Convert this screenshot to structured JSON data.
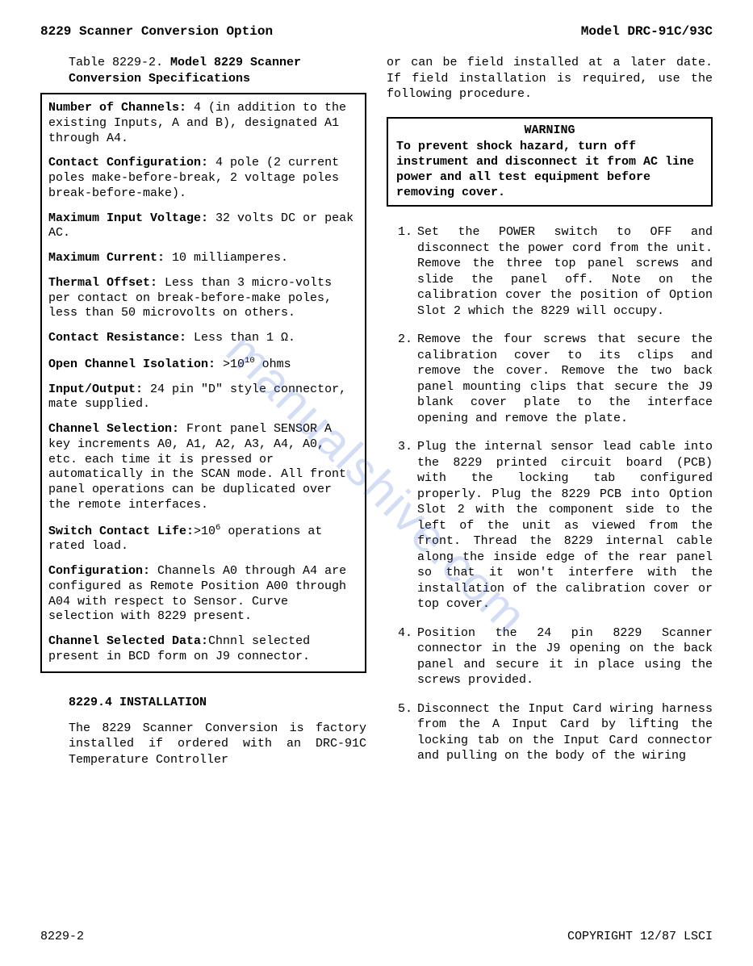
{
  "header": {
    "left": "8229 Scanner Conversion Option",
    "right": "Model DRC-91C/93C"
  },
  "table_caption": {
    "prefix": "Table 8229-2.  ",
    "bold": "Model 8229 Scanner Conversion Specifications"
  },
  "specs": [
    {
      "label": "Number of Channels:",
      "text": "  4 (in addition to the  existing Inputs, A and B), designated A1 through A4."
    },
    {
      "label": "Contact Configuration:",
      "text": "  4 pole (2 current poles make-before-break, 2 voltage poles break-before-make)."
    },
    {
      "label": "Maximum Input Voltage:",
      "text": "  32 volts DC or peak AC."
    },
    {
      "label": "Maximum Current:",
      "text": "  10 milliamperes."
    },
    {
      "label": "Thermal Offset:",
      "text": "  Less than 3 micro-volts per contact on break-before-make poles, less than 50 microvolts on others."
    },
    {
      "label": "Contact Resistance:",
      "text": "  Less than 1 Ω."
    },
    {
      "label": "Open Channel Isolation:",
      "text_html": "  >10<sup>10</sup> ohms"
    },
    {
      "label": "Input/Output:",
      "text": "  24 pin \"D\" style connector, mate supplied."
    },
    {
      "label": "Channel Selection:",
      "text": "  Front panel SENSOR A key increments A0, A1, A2, A3, A4, A0, etc. each time it is pressed or automatically in the SCAN mode.  All front panel operations can be duplicated over the remote interfaces."
    },
    {
      "label": "Switch Contact Life:",
      "text_html": ">10<sup>6</sup> operations at rated load."
    },
    {
      "label": "Configuration:",
      "text": "  Channels A0 through A4 are configured as Remote Position A00 through A04 with respect to Sensor.  Curve selection with 8229 present."
    },
    {
      "label": "Channel Selected Data:",
      "text": "Chnnl selected present in BCD form on J9 connector."
    }
  ],
  "installation": {
    "heading": "8229.4 INSTALLATION",
    "para": "The 8229 Scanner Conversion is factory installed if ordered with an DRC-91C Temperature Controller"
  },
  "right_intro": "or can be field installed at a later date.  If field installation is required, use the following procedure.",
  "warning": {
    "title": "WARNING",
    "body": "To prevent shock hazard, turn off instrument and disconnect it from AC line power and all test equipment before removing cover."
  },
  "steps": [
    {
      "n": "1.",
      "text": "Set the POWER switch to OFF and disconnect the power cord from the unit.  Remove the three top panel screws and slide the panel off.  Note on the calibration cover the position of Option Slot 2 which the 8229 will occupy."
    },
    {
      "n": "2.",
      "text": "Remove the four screws that secure the calibration cover to its clips and remove the cover.  Remove the two back panel mounting clips that secure the J9 blank cover plate to the interface opening and remove the plate."
    },
    {
      "n": "3.",
      "text": "Plug the internal sensor lead cable into the 8229 printed circuit board (PCB) with the locking tab configured properly.  Plug the 8229 PCB into Option Slot 2 with the component side to the left of the unit as viewed from the front.  Thread the 8229 internal cable along the inside edge of the rear panel so that it won't interfere with the installation of the calibration cover or top cover."
    },
    {
      "n": "4.",
      "text": "Position the 24 pin 8229 Scanner connector in the J9 opening on the back panel and secure it in place using the screws provided."
    },
    {
      "n": "5.",
      "text": "Disconnect the Input Card wiring harness from the A Input Card by lifting the locking tab on the Input Card connector and pulling on the body of the wiring"
    }
  ],
  "footer": {
    "left": "8229-2",
    "right": "COPYRIGHT 12/87 LSCI"
  },
  "watermark": "manualshive.com"
}
